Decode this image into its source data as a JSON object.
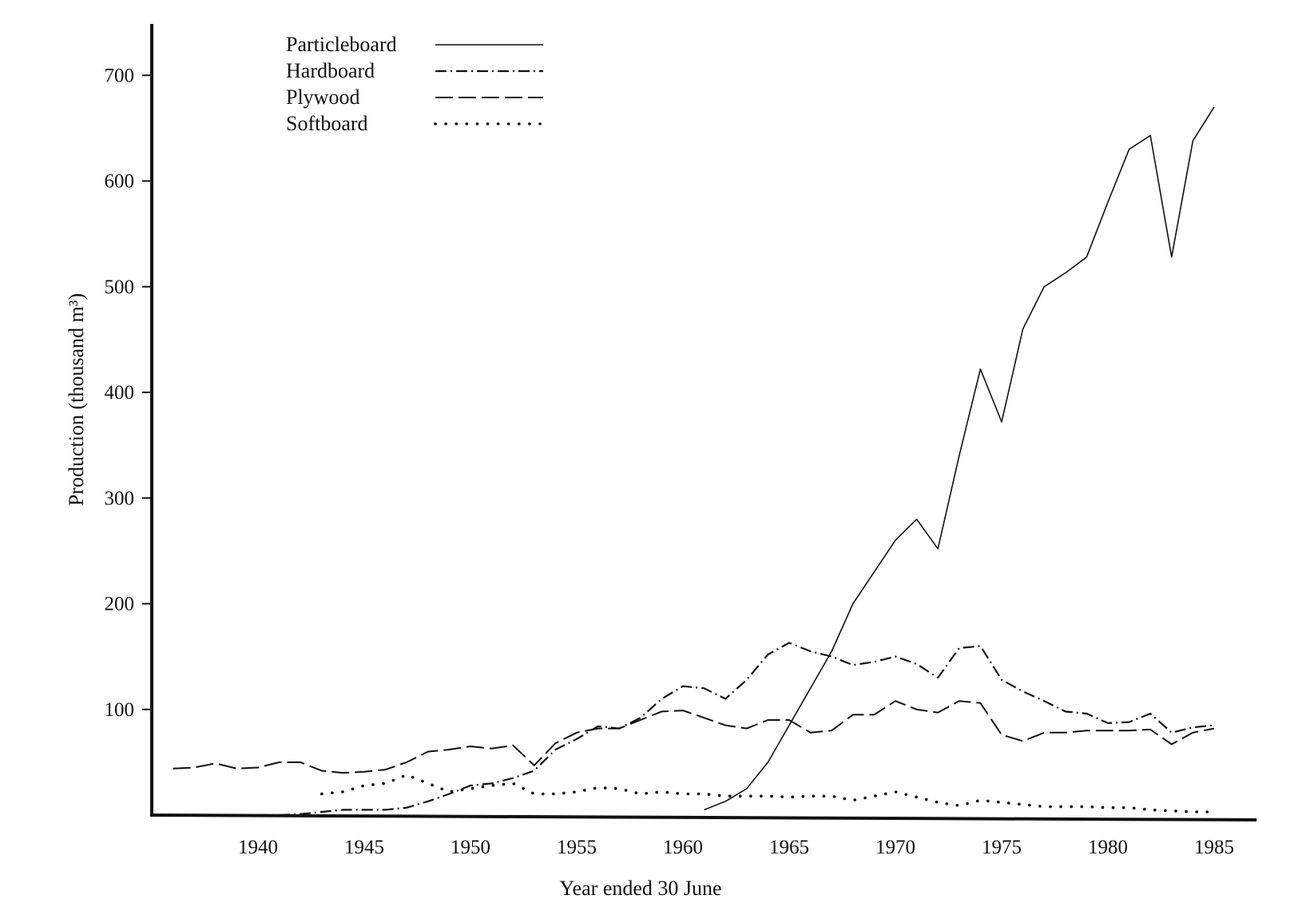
{
  "chart_data": {
    "type": "line",
    "title": "",
    "xlabel": "Year ended 30 June",
    "ylabel": "Production (thousand m³)",
    "xlim": [
      1935,
      1987
    ],
    "ylim": [
      0,
      750
    ],
    "xticks": [
      1940,
      1945,
      1950,
      1955,
      1960,
      1965,
      1970,
      1975,
      1980,
      1985
    ],
    "yticks": [
      100,
      200,
      300,
      400,
      500,
      600,
      700
    ],
    "grid": false,
    "legend_position": "top-left",
    "series": [
      {
        "name": "Particleboard",
        "style": "solid",
        "x": [
          1961,
          1962,
          1963,
          1964,
          1965,
          1966,
          1967,
          1968,
          1969,
          1970,
          1971,
          1972,
          1973,
          1974,
          1975,
          1976,
          1977,
          1978,
          1979,
          1980,
          1981,
          1982,
          1983,
          1984,
          1985
        ],
        "y": [
          5,
          13,
          25,
          50,
          85,
          120,
          155,
          200,
          230,
          260,
          280,
          252,
          340,
          422,
          372,
          460,
          500,
          513,
          528,
          580,
          630,
          643,
          528,
          638,
          670
        ]
      },
      {
        "name": "Hardboard",
        "style": "dash-dot",
        "x": [
          1940,
          1941,
          1942,
          1943,
          1944,
          1945,
          1946,
          1947,
          1948,
          1949,
          1950,
          1951,
          1952,
          1953,
          1954,
          1955,
          1956,
          1957,
          1958,
          1959,
          1960,
          1961,
          1962,
          1963,
          1964,
          1965,
          1966,
          1967,
          1968,
          1969,
          1970,
          1971,
          1972,
          1973,
          1974,
          1975,
          1976,
          1977,
          1978,
          1979,
          1980,
          1981,
          1982,
          1983,
          1984,
          1985
        ],
        "y": [
          0,
          0,
          1,
          3,
          5,
          5,
          5,
          7,
          13,
          20,
          28,
          30,
          35,
          42,
          62,
          72,
          84,
          82,
          92,
          110,
          122,
          120,
          110,
          128,
          152,
          163,
          155,
          150,
          142,
          145,
          150,
          143,
          130,
          158,
          160,
          128,
          117,
          108,
          98,
          96,
          87,
          88,
          96,
          78,
          83,
          85
        ]
      },
      {
        "name": "Plywood",
        "style": "dashed",
        "x": [
          1936,
          1937,
          1938,
          1939,
          1940,
          1941,
          1942,
          1943,
          1944,
          1945,
          1946,
          1947,
          1948,
          1949,
          1950,
          1951,
          1952,
          1953,
          1954,
          1955,
          1956,
          1957,
          1958,
          1959,
          1960,
          1961,
          1962,
          1963,
          1964,
          1965,
          1966,
          1967,
          1968,
          1969,
          1970,
          1971,
          1972,
          1973,
          1974,
          1975,
          1976,
          1977,
          1978,
          1979,
          1980,
          1981,
          1982,
          1983,
          1984,
          1985
        ],
        "y": [
          44,
          45,
          49,
          44,
          45,
          50,
          50,
          42,
          40,
          41,
          43,
          50,
          60,
          62,
          65,
          63,
          66,
          47,
          68,
          78,
          82,
          82,
          90,
          98,
          99,
          92,
          85,
          82,
          90,
          90,
          78,
          80,
          95,
          95,
          108,
          100,
          97,
          108,
          106,
          76,
          70,
          78,
          78,
          80,
          80,
          80,
          81,
          67,
          78,
          82
        ]
      },
      {
        "name": "Softboard",
        "style": "dotted",
        "x": [
          1943,
          1944,
          1945,
          1946,
          1947,
          1948,
          1949,
          1950,
          1951,
          1952,
          1953,
          1954,
          1955,
          1956,
          1957,
          1958,
          1959,
          1960,
          1961,
          1962,
          1963,
          1964,
          1965,
          1966,
          1967,
          1968,
          1969,
          1970,
          1971,
          1972,
          1973,
          1974,
          1975,
          1976,
          1977,
          1978,
          1979,
          1980,
          1981,
          1982,
          1983,
          1984,
          1985
        ],
        "y": [
          20,
          22,
          28,
          30,
          38,
          30,
          22,
          25,
          28,
          30,
          20,
          20,
          22,
          26,
          25,
          20,
          22,
          20,
          20,
          18,
          18,
          18,
          17,
          18,
          18,
          14,
          18,
          22,
          17,
          12,
          9,
          14,
          12,
          10,
          8,
          8,
          8,
          7,
          7,
          5,
          4,
          3,
          3
        ]
      }
    ]
  }
}
